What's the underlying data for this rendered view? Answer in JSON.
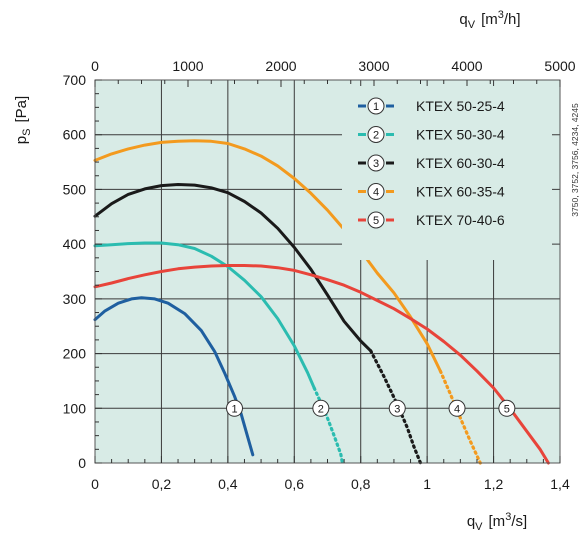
{
  "chart_data": {
    "type": "line",
    "background": "#d8ebe6",
    "grid": true,
    "legend_placement": "top-right",
    "xlabel": {
      "base": "q",
      "sub": "V",
      "unit_pre": "[m",
      "unit_sup": "3",
      "unit_post": "/s]"
    },
    "ylabel": {
      "base": "p",
      "sub": "S",
      "unit": "[Pa]"
    },
    "x2label": {
      "base": "q",
      "sub": "V",
      "unit_pre": "[m",
      "unit_sup": "3",
      "unit_post": "/h]"
    },
    "xlim": [
      0,
      1.4
    ],
    "ylim": [
      0,
      700
    ],
    "x2lim": [
      0,
      5000
    ],
    "x_ticks": [
      {
        "value": 0,
        "label": "0"
      },
      {
        "value": 0.2,
        "label": "0,2"
      },
      {
        "value": 0.4,
        "label": "0,4"
      },
      {
        "value": 0.6,
        "label": "0,6"
      },
      {
        "value": 0.8,
        "label": "0,8"
      },
      {
        "value": 1.0,
        "label": "1"
      },
      {
        "value": 1.2,
        "label": "1,2"
      },
      {
        "value": 1.4,
        "label": "1,4"
      }
    ],
    "y_ticks": [
      {
        "value": 0,
        "label": "0"
      },
      {
        "value": 100,
        "label": "100"
      },
      {
        "value": 200,
        "label": "200"
      },
      {
        "value": 300,
        "label": "300"
      },
      {
        "value": 400,
        "label": "400"
      },
      {
        "value": 500,
        "label": "500"
      },
      {
        "value": 600,
        "label": "600"
      },
      {
        "value": 700,
        "label": "700"
      }
    ],
    "x2_ticks": [
      {
        "value": 0,
        "label": "0"
      },
      {
        "value": 1000,
        "label": "1000"
      },
      {
        "value": 2000,
        "label": "2000"
      },
      {
        "value": 3000,
        "label": "3000"
      },
      {
        "value": 4000,
        "label": "4000"
      },
      {
        "value": 5000,
        "label": "5000"
      }
    ],
    "series": [
      {
        "name": "KTEX 50-25-4",
        "marker": "1",
        "color": "#1f5fa0",
        "marker_point": [
          0.42,
          100
        ],
        "solid": [
          [
            0,
            262
          ],
          [
            0.03,
            278
          ],
          [
            0.07,
            292
          ],
          [
            0.11,
            300
          ],
          [
            0.14,
            302
          ],
          [
            0.18,
            300
          ],
          [
            0.22,
            292
          ],
          [
            0.27,
            273
          ],
          [
            0.32,
            242
          ],
          [
            0.36,
            204
          ],
          [
            0.39,
            165
          ],
          [
            0.42,
            122
          ],
          [
            0.44,
            90
          ],
          [
            0.46,
            47
          ],
          [
            0.475,
            15
          ]
        ],
        "dotted": []
      },
      {
        "name": "KTEX 50-30-4",
        "marker": "2",
        "color": "#2bbcb0",
        "marker_point": [
          0.68,
          100
        ],
        "solid": [
          [
            0,
            397
          ],
          [
            0.05,
            399
          ],
          [
            0.1,
            401
          ],
          [
            0.15,
            402
          ],
          [
            0.2,
            402
          ],
          [
            0.25,
            399
          ],
          [
            0.3,
            392
          ],
          [
            0.35,
            378
          ],
          [
            0.4,
            359
          ],
          [
            0.45,
            334
          ],
          [
            0.5,
            304
          ],
          [
            0.55,
            264
          ],
          [
            0.6,
            214
          ],
          [
            0.64,
            165
          ],
          [
            0.66,
            137
          ]
        ],
        "dotted": [
          [
            0.66,
            137
          ],
          [
            0.68,
            110
          ],
          [
            0.7,
            82
          ],
          [
            0.72,
            50
          ],
          [
            0.74,
            16
          ],
          [
            0.745,
            0
          ]
        ]
      },
      {
        "name": "KTEX 60-30-4",
        "marker": "3",
        "color": "#1a1a1a",
        "marker_point": [
          0.91,
          100
        ],
        "solid": [
          [
            0,
            451
          ],
          [
            0.05,
            474
          ],
          [
            0.1,
            491
          ],
          [
            0.15,
            501
          ],
          [
            0.2,
            507
          ],
          [
            0.25,
            509
          ],
          [
            0.3,
            508
          ],
          [
            0.35,
            503
          ],
          [
            0.4,
            494
          ],
          [
            0.45,
            478
          ],
          [
            0.5,
            457
          ],
          [
            0.55,
            429
          ],
          [
            0.6,
            394
          ],
          [
            0.65,
            354
          ],
          [
            0.7,
            307
          ],
          [
            0.75,
            259
          ],
          [
            0.8,
            223
          ],
          [
            0.83,
            205
          ]
        ],
        "dotted": [
          [
            0.83,
            205
          ],
          [
            0.87,
            158
          ],
          [
            0.91,
            107
          ],
          [
            0.94,
            65
          ],
          [
            0.96,
            30
          ],
          [
            0.98,
            0
          ]
        ]
      },
      {
        "name": "KTEX 60-35-4",
        "marker": "4",
        "color": "#f39a1e",
        "marker_point": [
          1.09,
          100
        ],
        "solid": [
          [
            0,
            553
          ],
          [
            0.05,
            565
          ],
          [
            0.1,
            574
          ],
          [
            0.15,
            581
          ],
          [
            0.2,
            586
          ],
          [
            0.25,
            588
          ],
          [
            0.3,
            589
          ],
          [
            0.35,
            588
          ],
          [
            0.4,
            584
          ],
          [
            0.45,
            574
          ],
          [
            0.5,
            561
          ],
          [
            0.55,
            543
          ],
          [
            0.6,
            520
          ],
          [
            0.65,
            493
          ],
          [
            0.7,
            462
          ],
          [
            0.75,
            427
          ],
          [
            0.8,
            388
          ],
          [
            0.85,
            347
          ],
          [
            0.9,
            311
          ],
          [
            0.95,
            267
          ],
          [
            1.0,
            218
          ],
          [
            1.04,
            168
          ]
        ],
        "dotted": [
          [
            1.04,
            168
          ],
          [
            1.07,
            126
          ],
          [
            1.1,
            82
          ],
          [
            1.13,
            40
          ],
          [
            1.16,
            0
          ]
        ]
      },
      {
        "name": "KTEX 70-40-6",
        "marker": "5",
        "color": "#e8443a",
        "marker_point": [
          1.24,
          100
        ],
        "solid": [
          [
            0,
            322
          ],
          [
            0.05,
            329
          ],
          [
            0.1,
            337
          ],
          [
            0.15,
            344
          ],
          [
            0.2,
            350
          ],
          [
            0.25,
            355
          ],
          [
            0.3,
            358
          ],
          [
            0.35,
            360
          ],
          [
            0.4,
            361
          ],
          [
            0.45,
            361
          ],
          [
            0.5,
            360
          ],
          [
            0.55,
            357
          ],
          [
            0.6,
            352
          ],
          [
            0.65,
            344
          ],
          [
            0.7,
            335
          ],
          [
            0.75,
            325
          ],
          [
            0.8,
            312
          ],
          [
            0.85,
            297
          ],
          [
            0.9,
            282
          ],
          [
            0.95,
            264
          ],
          [
            1.0,
            245
          ],
          [
            1.05,
            222
          ],
          [
            1.1,
            197
          ],
          [
            1.15,
            168
          ],
          [
            1.2,
            137
          ],
          [
            1.25,
            99
          ],
          [
            1.3,
            58
          ],
          [
            1.34,
            25
          ],
          [
            1.365,
            0
          ]
        ],
        "dotted": []
      }
    ]
  },
  "side_note": "3750, 3752, 3756, 4234, 4245"
}
